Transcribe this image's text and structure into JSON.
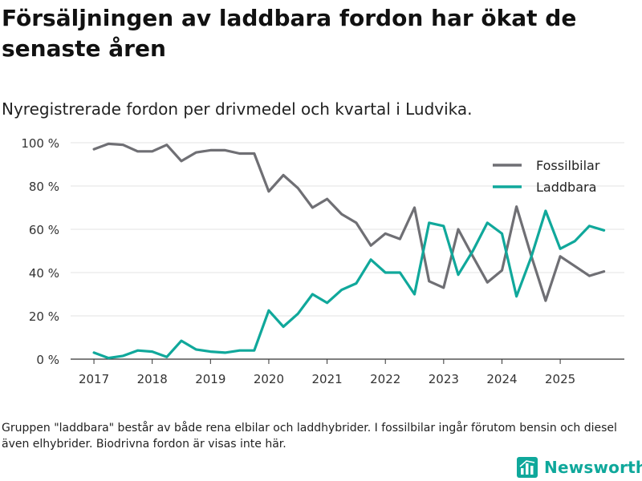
{
  "header": {
    "title": "Försäljningen av laddbara fordon har ökat de senaste åren",
    "subtitle": "Nyregistrerade fordon per drivmedel och kvartal i Ludvika."
  },
  "footnote": "Gruppen \"laddbara\" består av både rena elbilar och laddhybrider. I fossilbilar ingår förutom bensin och diesel även elhybrider. Biodrivna fordon är visas inte här.",
  "brand": {
    "name": "Newsworthy",
    "icon": "bar-chart-logo-icon",
    "color": "#0fa89b"
  },
  "chart_data": {
    "type": "line",
    "title": "",
    "xlabel": "",
    "ylabel": "",
    "xlim": [
      2016.6,
      2026.1
    ],
    "ylim": [
      0,
      100
    ],
    "yticks": [
      0,
      20,
      40,
      60,
      80,
      100
    ],
    "ytick_labels": [
      "0 %",
      "20 %",
      "40 %",
      "60 %",
      "80 %",
      "100 %"
    ],
    "xticks": [
      2017,
      2018,
      2019,
      2020,
      2021,
      2022,
      2023,
      2024,
      2025
    ],
    "xtick_labels": [
      "2017",
      "2018",
      "2019",
      "2020",
      "2021",
      "2022",
      "2023",
      "2024",
      "2025"
    ],
    "legend_position": "top-right",
    "grid": "horizontal",
    "x": [
      2017,
      2017.25,
      2017.5,
      2017.75,
      2018,
      2018.25,
      2018.5,
      2018.75,
      2019,
      2019.25,
      2019.5,
      2019.75,
      2020,
      2020.25,
      2020.5,
      2020.75,
      2021,
      2021.25,
      2021.5,
      2021.75,
      2022,
      2022.25,
      2022.5,
      2022.75,
      2023,
      2023.25,
      2023.5,
      2023.75,
      2024,
      2024.25,
      2024.5,
      2024.75,
      2025,
      2025.25,
      2025.5,
      2025.75
    ],
    "series": [
      {
        "name": "Fossilbilar",
        "color": "#6f6f74",
        "values": [
          97,
          99.5,
          99,
          96,
          96,
          99,
          91.5,
          95.5,
          96.5,
          96.5,
          95,
          95,
          77.5,
          85,
          79,
          70,
          74,
          67,
          63,
          52.5,
          58,
          55.5,
          70,
          36,
          33,
          60,
          47.5,
          35.5,
          41,
          70.5,
          48,
          27,
          47.5,
          43,
          38.5,
          40.5
        ]
      },
      {
        "name": "Laddbara",
        "color": "#10a89b",
        "values": [
          3,
          0.5,
          1.5,
          4,
          3.5,
          1,
          8.5,
          4.5,
          3.5,
          3,
          4,
          4,
          22.5,
          15,
          21,
          30,
          26,
          32,
          35,
          46,
          40,
          40,
          30,
          63,
          61.5,
          39,
          50,
          63,
          58,
          29,
          47,
          68.5,
          51,
          54.5,
          61.5,
          59.5
        ]
      }
    ]
  }
}
